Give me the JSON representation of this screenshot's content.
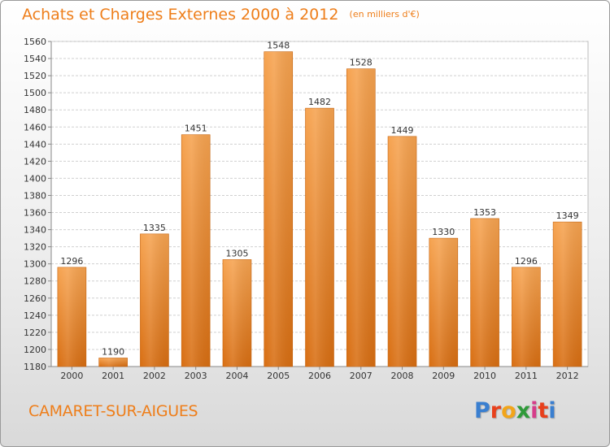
{
  "header": {
    "title": "Achats et Charges Externes 2000 à 2012",
    "subtitle": "(en milliers d'€)"
  },
  "footer": {
    "place": "CAMARET-SUR-AIGUES",
    "logo": [
      "P",
      "r",
      "o",
      "x",
      "i",
      "t",
      "i"
    ],
    "logo_colors": [
      "#3a7fd0",
      "#e8401c",
      "#f2a51a",
      "#2f9a3a",
      "#d63c8a",
      "#e8401c",
      "#3a7fd0"
    ]
  },
  "chart_data": {
    "type": "bar",
    "title": "Achats et Charges Externes 2000 à 2012",
    "subtitle": "(en milliers d'€)",
    "categories": [
      "2000",
      "2001",
      "2002",
      "2003",
      "2004",
      "2005",
      "2006",
      "2007",
      "2008",
      "2009",
      "2010",
      "2011",
      "2012"
    ],
    "values": [
      1296,
      1190,
      1335,
      1451,
      1305,
      1548,
      1482,
      1528,
      1449,
      1330,
      1353,
      1296,
      1349
    ],
    "ylim": [
      1180,
      1560
    ],
    "yticks": [
      1180,
      1200,
      1220,
      1240,
      1260,
      1280,
      1300,
      1320,
      1340,
      1360,
      1380,
      1400,
      1420,
      1440,
      1460,
      1480,
      1500,
      1520,
      1540,
      1560
    ],
    "grid": true,
    "bar_color": "#f0933a",
    "xlabel": "",
    "ylabel": ""
  }
}
